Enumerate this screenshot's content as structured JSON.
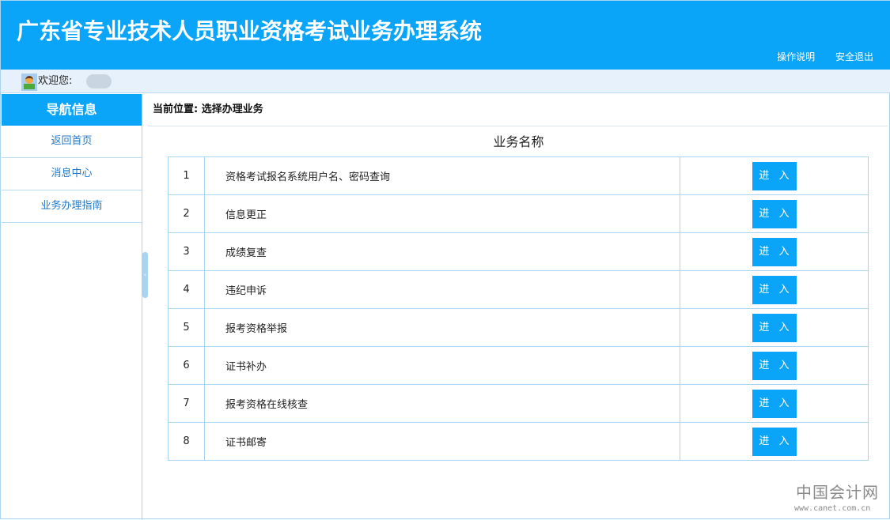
{
  "header": {
    "title": "广东省专业技术人员职业资格考试业务办理系统",
    "links": [
      "操作说明",
      "安全退出"
    ]
  },
  "welcome": {
    "label": "欢迎您:"
  },
  "sidebar": {
    "title": "导航信息",
    "items": [
      "返回首页",
      "消息中心",
      "业务办理指南"
    ]
  },
  "breadcrumb": "当前位置: 选择办理业务",
  "table": {
    "header": "业务名称",
    "enter_label": "进 入",
    "rows": [
      {
        "no": "1",
        "name": "资格考试报名系统用户名、密码查询"
      },
      {
        "no": "2",
        "name": "信息更正"
      },
      {
        "no": "3",
        "name": "成绩复查"
      },
      {
        "no": "4",
        "name": "违纪申诉"
      },
      {
        "no": "5",
        "name": "报考资格举报"
      },
      {
        "no": "6",
        "name": "证书补办"
      },
      {
        "no": "7",
        "name": "报考资格在线核查"
      },
      {
        "no": "8",
        "name": "证书邮寄"
      }
    ]
  },
  "watermark": {
    "cn": "中国会计网",
    "url": "www.canet.com.cn"
  },
  "colors": {
    "primary": "#0aa4f8",
    "border": "#a9d4ef"
  }
}
